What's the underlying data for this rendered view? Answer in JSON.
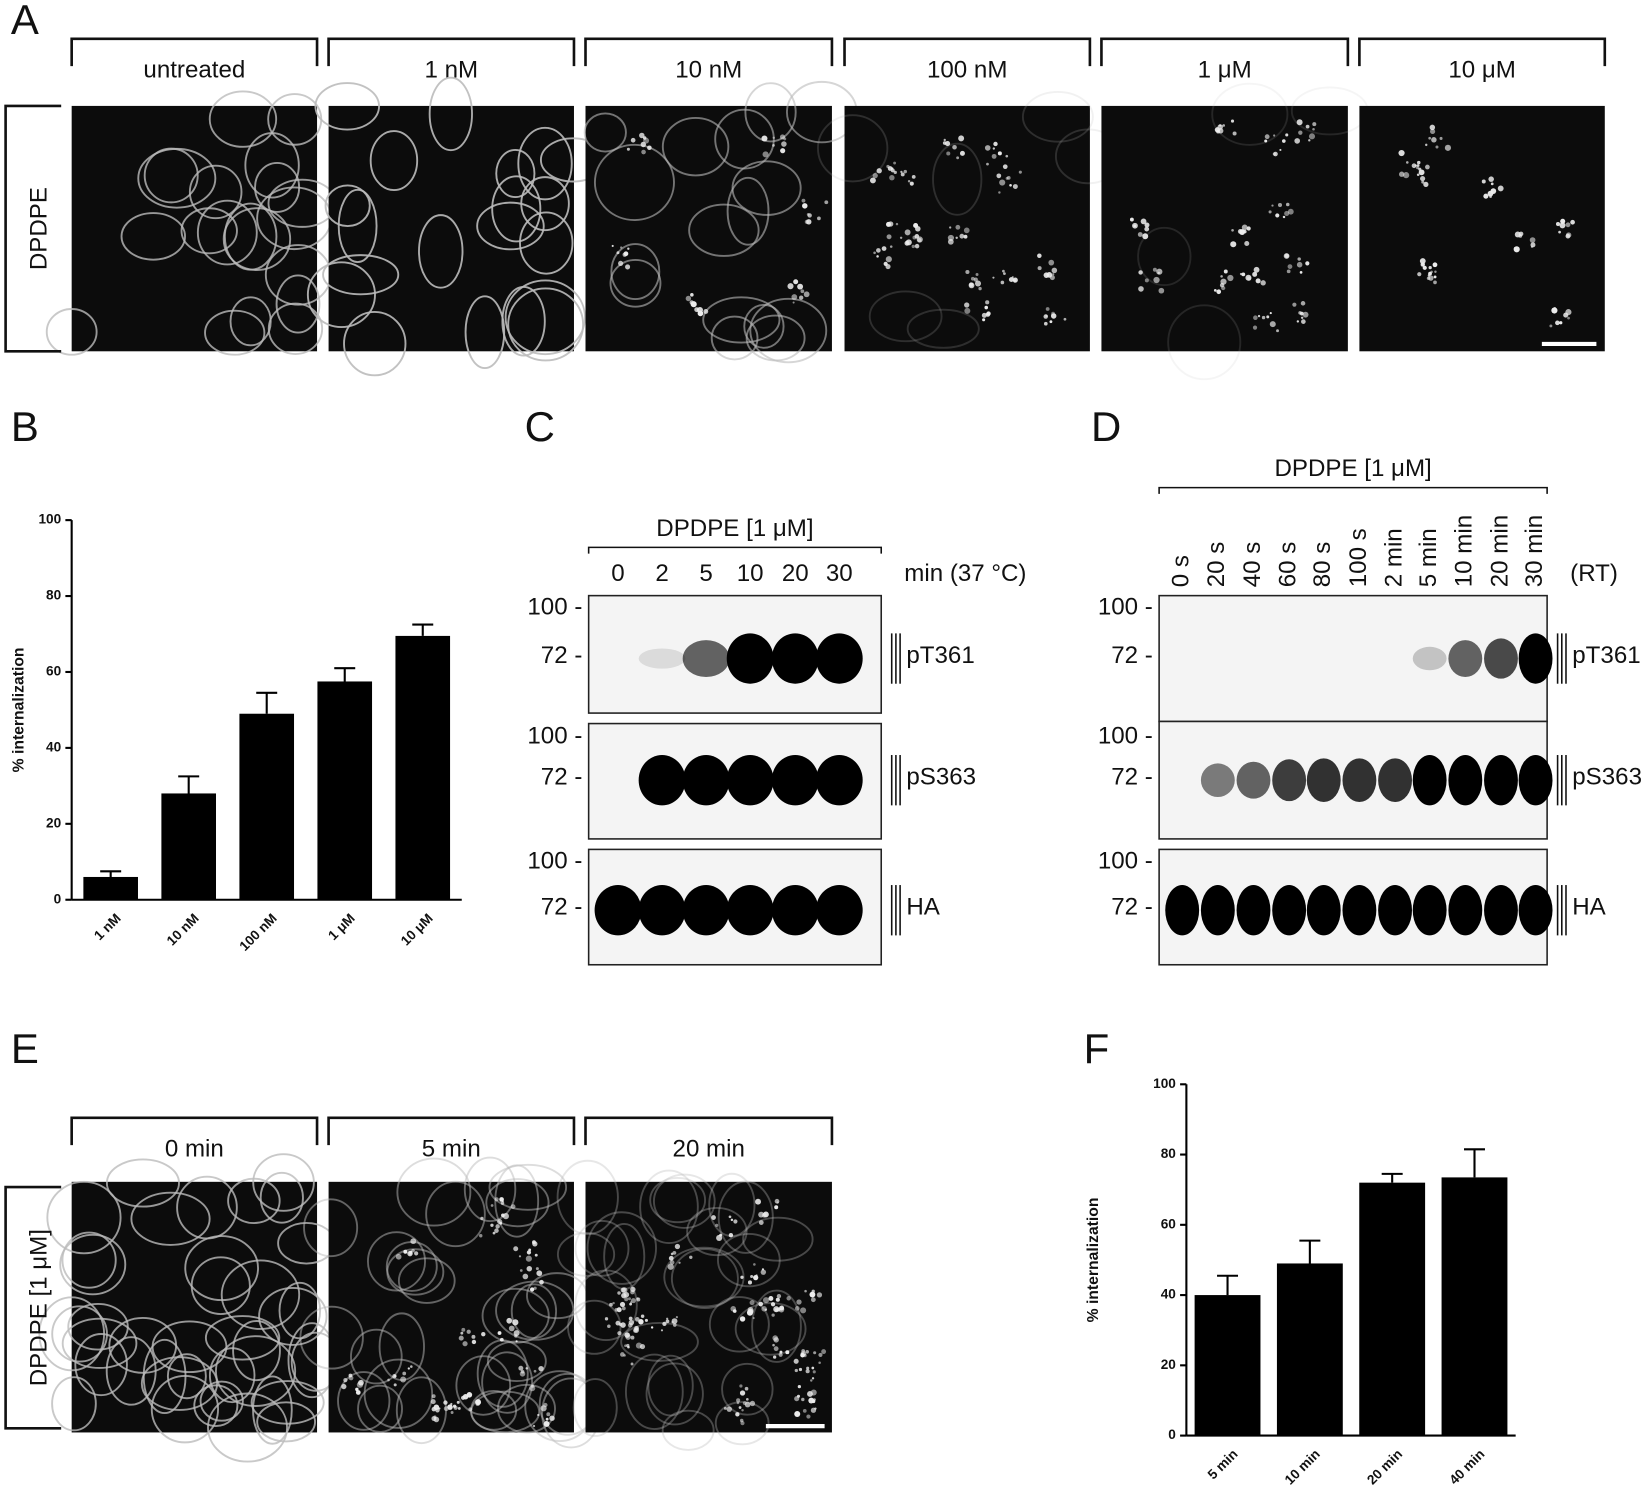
{
  "panel_labels": [
    "A",
    "B",
    "C",
    "D",
    "E",
    "F"
  ],
  "panel_a": {
    "column_labels": [
      "untreated",
      "1 nM",
      "10 nM",
      "100 nM",
      "1 μM",
      "10 μM"
    ],
    "row_label": "DPDPE"
  },
  "panel_c": {
    "treatment": "DPDPE  [1 μM]",
    "lanes": [
      "0",
      "2",
      "5",
      "10",
      "20",
      "30"
    ],
    "lane_unit": "min (37 °C)",
    "markers": [
      "100 -",
      "72 -"
    ],
    "blots": [
      "pT361",
      "pS363",
      "HA"
    ]
  },
  "panel_d": {
    "treatment": "DPDPE [1 μM]",
    "lanes": [
      "0 s",
      "20 s",
      "40 s",
      "60 s",
      "80 s",
      "100 s",
      "2 min",
      "5 min",
      "10 min",
      "20 min",
      "30 min"
    ],
    "lane_unit": "(RT)",
    "markers": [
      "100 -",
      "72 -"
    ],
    "blots": [
      "pT361",
      "pS363",
      "HA"
    ]
  },
  "panel_e": {
    "column_labels": [
      "0 min",
      "5 min",
      "20 min"
    ],
    "row_label": "DPDPE [1 μM]"
  },
  "chart_data": [
    {
      "type": "bar",
      "y_label": "% internalization",
      "categories": [
        "1 nM",
        "10 nM",
        "100 nM",
        "1 μM",
        "10 μM"
      ],
      "values": [
        6,
        28,
        49,
        57.5,
        69.5
      ],
      "errors": [
        1.5,
        4.5,
        5.5,
        3.5,
        3
      ],
      "color": "#000000",
      "ylim": [
        0,
        100
      ],
      "yticks": [
        0,
        20,
        40,
        60,
        80,
        100
      ]
    },
    {
      "type": "bar",
      "y_label": "% internalization",
      "categories": [
        "5 min",
        "10 min",
        "20 min",
        "40 min"
      ],
      "values": [
        40,
        49,
        72,
        73.5
      ],
      "errors": [
        5.5,
        6.5,
        2.5,
        8
      ],
      "color": "#000000",
      "ylim": [
        0,
        100
      ],
      "yticks": [
        0,
        20,
        40,
        60,
        80,
        100
      ]
    }
  ]
}
